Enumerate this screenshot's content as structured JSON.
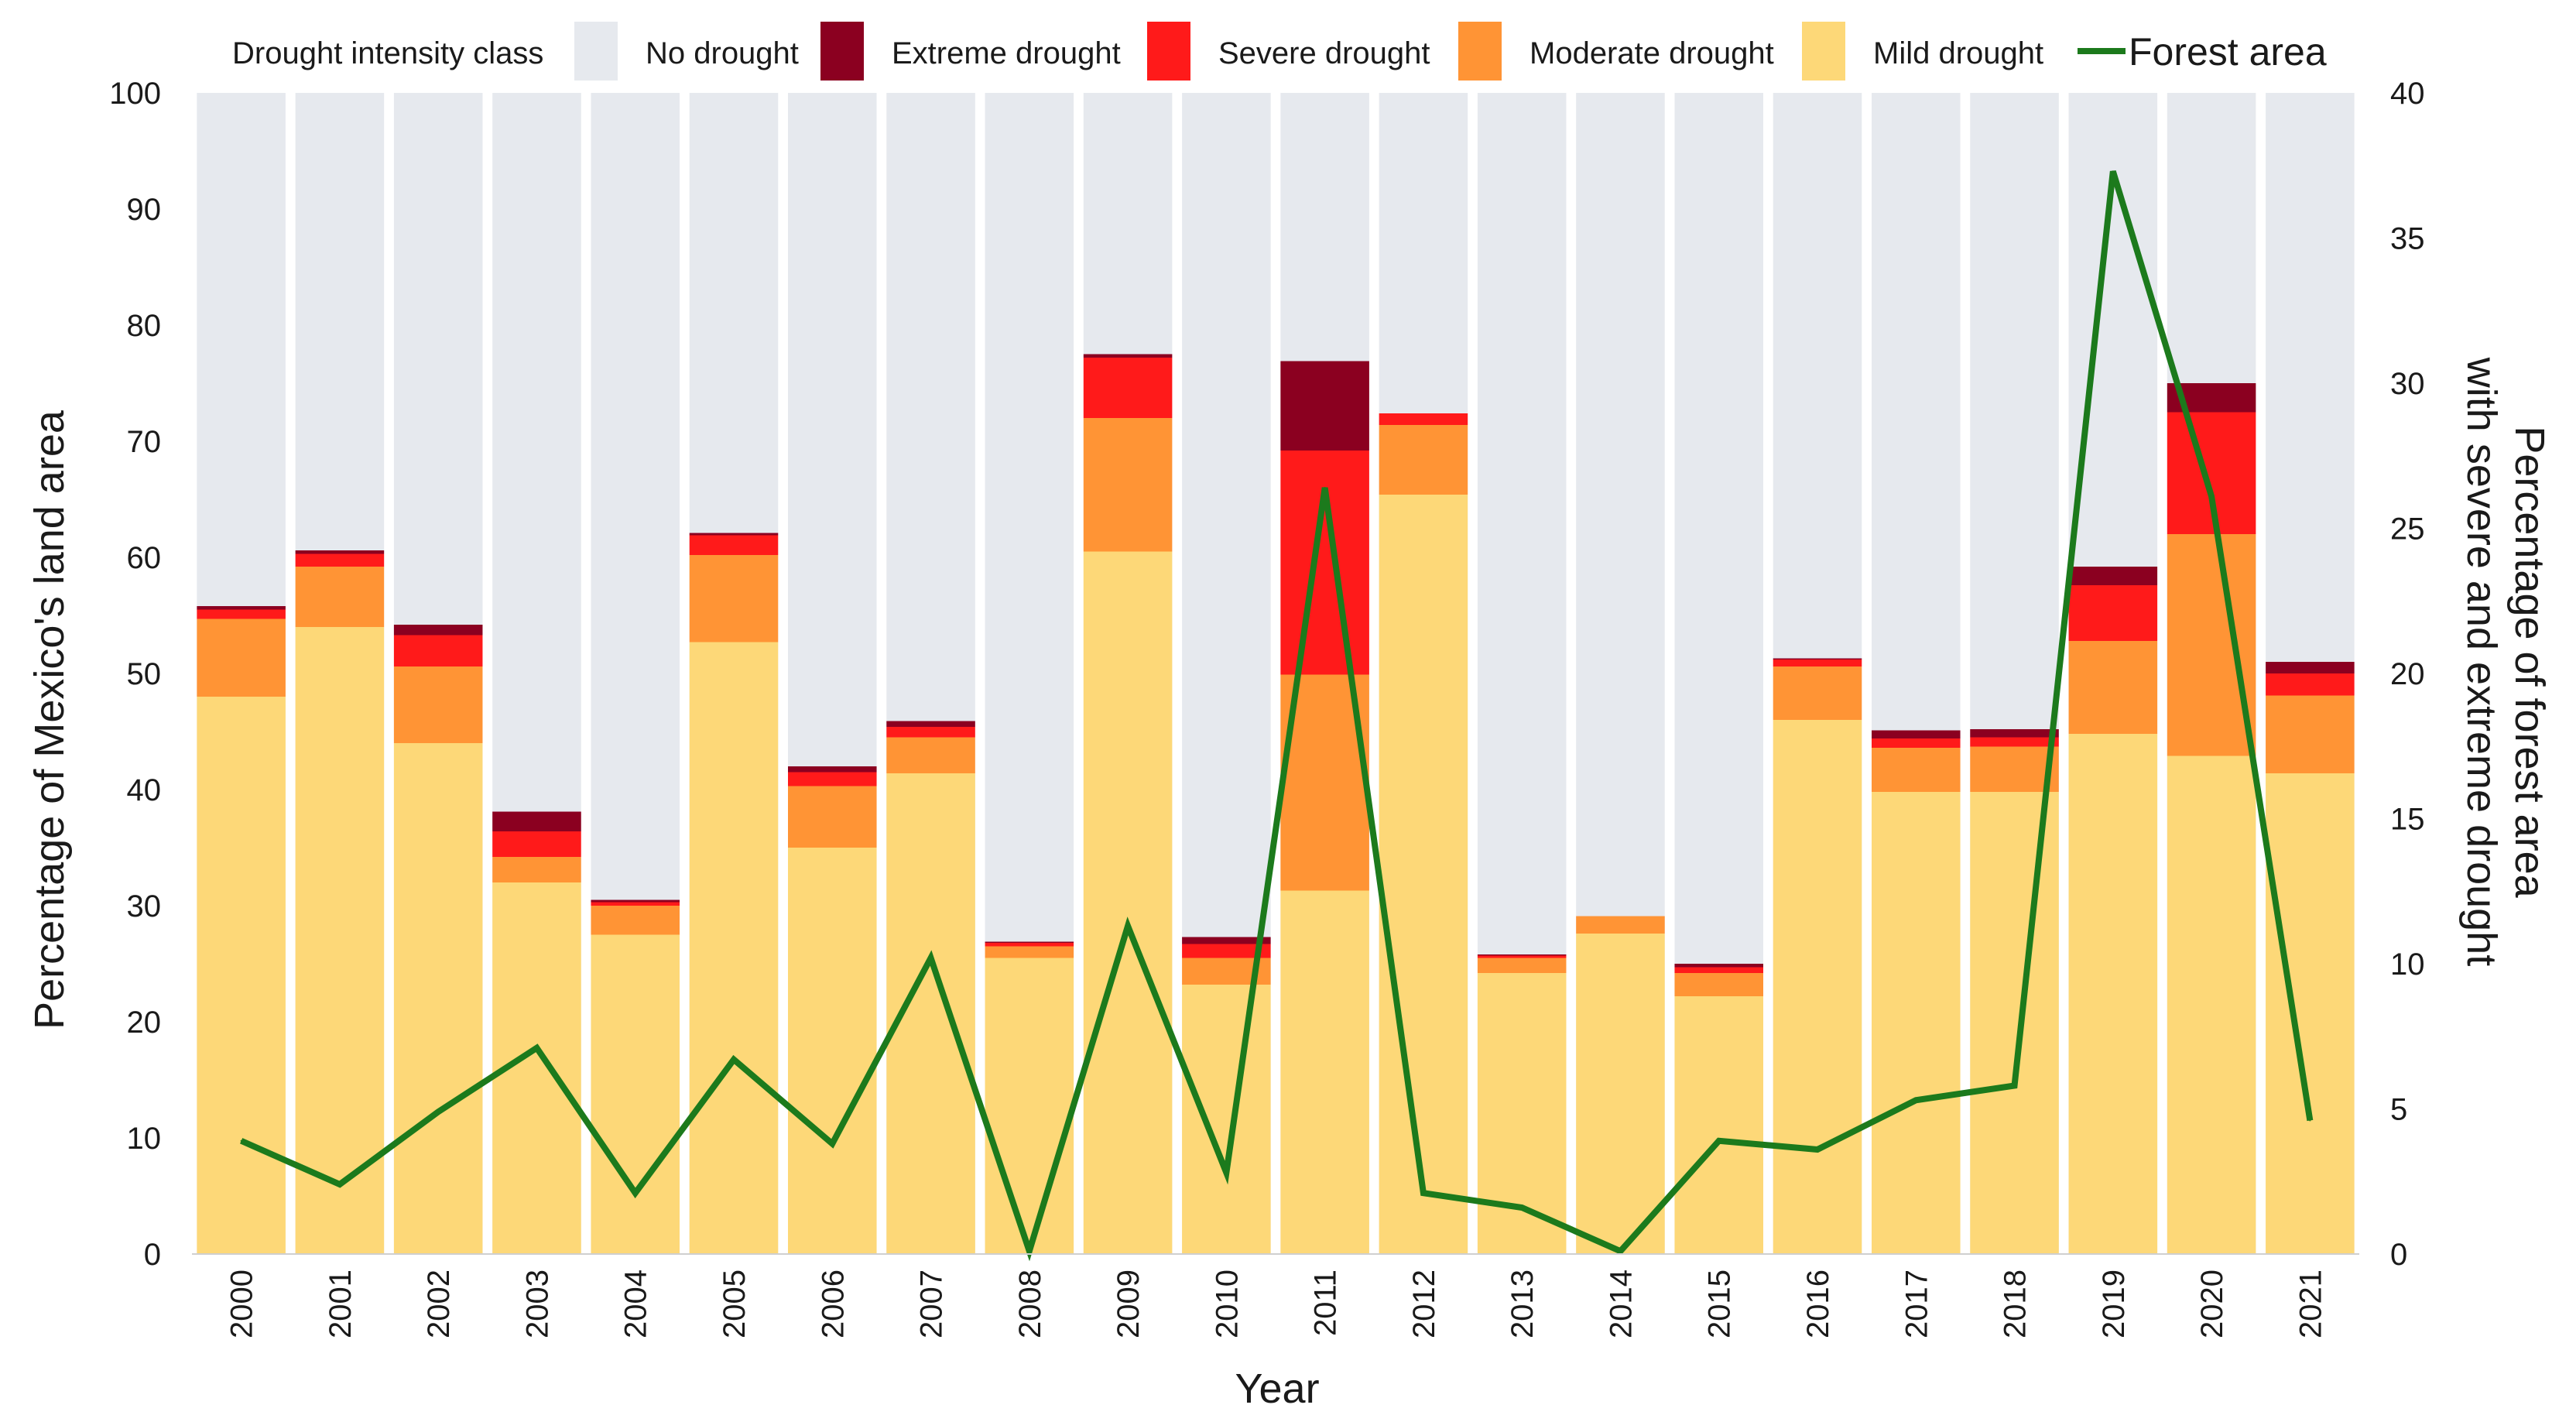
{
  "chart_data": {
    "type": "bar",
    "stacked": true,
    "legend": {
      "position": "top",
      "title": "Drought intensity class",
      "entries": [
        {
          "key": "no_drought",
          "label": "No drought",
          "color": "#e6e9ee"
        },
        {
          "key": "extreme",
          "label": "Extreme drought",
          "color": "#8b0020"
        },
        {
          "key": "severe",
          "label": "Severe drought",
          "color": "#ff1a1a"
        },
        {
          "key": "moderate",
          "label": "Moderate drought",
          "color": "#ff9435"
        },
        {
          "key": "mild",
          "label": "Mild drought",
          "color": "#fdd878"
        },
        {
          "key": "forest",
          "label": "Forest area",
          "color": "#1c7a1c",
          "kind": "line"
        }
      ]
    },
    "categories": [
      "2000",
      "2001",
      "2002",
      "2003",
      "2004",
      "2005",
      "2006",
      "2007",
      "2008",
      "2009",
      "2010",
      "2011",
      "2012",
      "2013",
      "2014",
      "2015",
      "2016",
      "2017",
      "2018",
      "2019",
      "2020",
      "2021"
    ],
    "series": [
      {
        "key": "mild",
        "name": "Mild drought",
        "color": "#fdd878",
        "values": [
          48.0,
          54.0,
          44.0,
          32.0,
          27.5,
          52.7,
          35.0,
          41.4,
          25.5,
          60.5,
          23.2,
          31.3,
          65.4,
          24.2,
          27.6,
          22.2,
          46.0,
          39.8,
          39.8,
          44.8,
          42.9,
          41.4
        ]
      },
      {
        "key": "moderate",
        "name": "Moderate drought",
        "color": "#ff9435",
        "values": [
          6.7,
          5.2,
          6.6,
          2.2,
          2.5,
          7.5,
          5.3,
          3.1,
          1.0,
          11.5,
          2.3,
          18.6,
          6.0,
          1.3,
          1.5,
          2.0,
          4.6,
          3.8,
          3.9,
          8.0,
          19.1,
          6.7
        ]
      },
      {
        "key": "severe",
        "name": "Severe drought",
        "color": "#ff1a1a",
        "values": [
          0.8,
          1.1,
          2.7,
          2.2,
          0.3,
          1.7,
          1.2,
          0.9,
          0.3,
          5.2,
          1.2,
          19.3,
          1.0,
          0.2,
          0.0,
          0.5,
          0.6,
          0.8,
          0.8,
          4.8,
          10.5,
          1.9
        ]
      },
      {
        "key": "extreme",
        "name": "Extreme drought",
        "color": "#8b0020",
        "values": [
          0.3,
          0.3,
          0.9,
          1.7,
          0.2,
          0.2,
          0.5,
          0.5,
          0.1,
          0.3,
          0.6,
          7.7,
          0.0,
          0.1,
          0.0,
          0.3,
          0.1,
          0.7,
          0.7,
          1.6,
          2.5,
          1.0
        ]
      }
    ],
    "line_series": {
      "key": "forest",
      "name": "Forest area",
      "color": "#1c7a1c",
      "axis": "right",
      "values": [
        3.9,
        2.4,
        4.9,
        7.1,
        2.1,
        6.7,
        3.8,
        10.2,
        0.1,
        11.3,
        2.8,
        26.4,
        2.1,
        1.6,
        0.1,
        3.9,
        3.6,
        5.3,
        5.8,
        37.3,
        26.1,
        4.6
      ]
    },
    "total": 100,
    "xlabel": "Year",
    "ylabel": "Percentage of Mexico's land area",
    "ylabel_right_line1": "Percentage of forest area",
    "ylabel_right_line2": "with severe and extreme drought",
    "ylim": [
      0,
      100
    ],
    "yticks": [
      0,
      10,
      20,
      30,
      40,
      50,
      60,
      70,
      80,
      90,
      100
    ],
    "ylim_right": [
      0,
      40
    ],
    "yticks_right": [
      0,
      5,
      10,
      15,
      20,
      25,
      30,
      35,
      40
    ],
    "grid": false
  }
}
